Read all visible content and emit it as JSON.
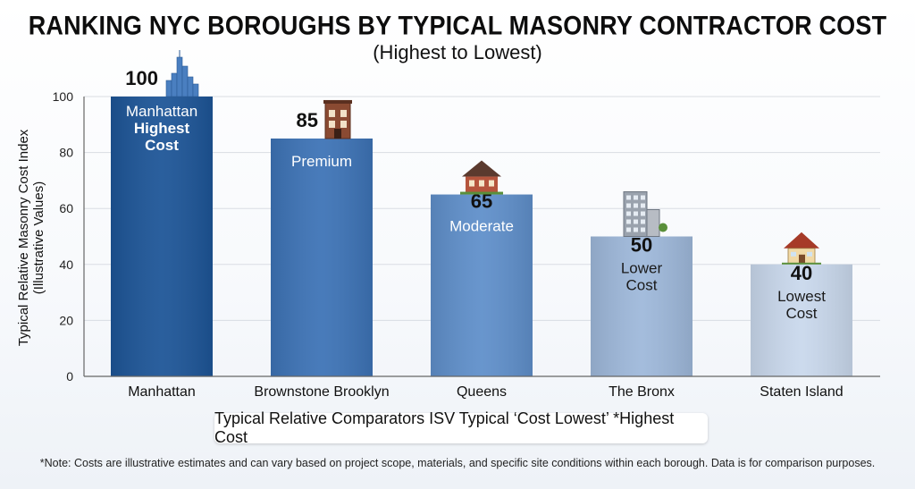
{
  "chart_data": {
    "type": "bar",
    "title": "RANKING NYC BOROUGHS BY TYPICAL MASONRY CONTRACTOR COST",
    "subtitle": "(Highest to Lowest)",
    "ylabel": "Typical Relative Masonry Cost Index",
    "ylabel_sub": "(Illustrative Values)",
    "ylim": [
      0,
      100
    ],
    "yticks": [
      0,
      20,
      40,
      60,
      80,
      100
    ],
    "grid": true,
    "categories": [
      "Manhattan",
      "Brownstone Brooklyn",
      "Queens",
      "The Bronx",
      "Staten Island"
    ],
    "values": [
      100,
      85,
      65,
      50,
      40
    ],
    "bar_labels": [
      [
        "Manhattan",
        "Highest",
        "Cost"
      ],
      [
        "Premium"
      ],
      [
        "Moderate"
      ],
      [
        "Lower",
        "Cost"
      ],
      [
        "Lowest",
        "Cost"
      ]
    ],
    "bar_colors": [
      "#1d5597",
      "#3d73b6",
      "#5f8fca",
      "#9eb8da",
      "#c9d8ec"
    ],
    "bar_icons": [
      "skyline-icon",
      "brownstone-icon",
      "house-icon",
      "apartment-building-icon",
      "home-icon"
    ]
  },
  "caption": "Typical Relative Comparators ISV Typical ‘Cost Lowest’ *Highest Cost",
  "footnote": "*Note: Costs are illustrative estimates and can vary based on project scope, materials, and specific site conditions within each borough. Data is for comparison purposes."
}
